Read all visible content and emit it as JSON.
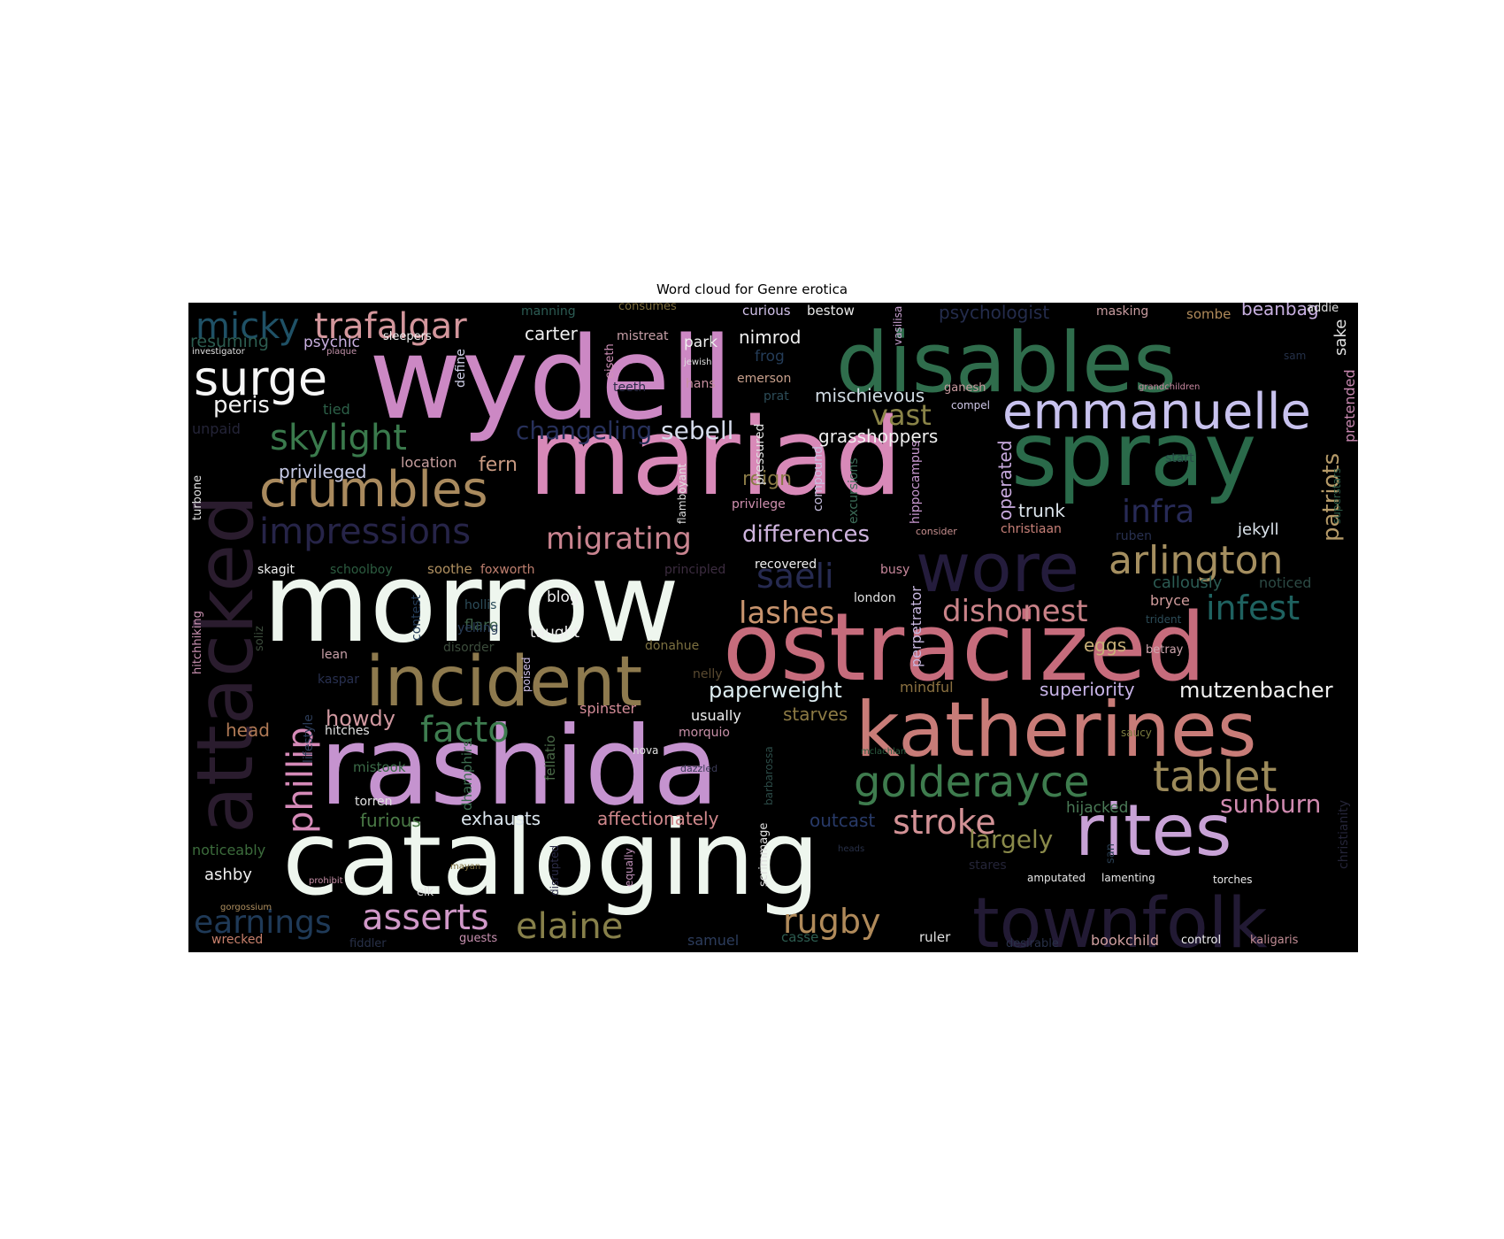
{
  "chart_data": {
    "type": "wordcloud",
    "title": "Word cloud for Genre erotica",
    "background_color": "#000000",
    "words": [
      {
        "text": "wydell",
        "color": "#cc88c4"
      },
      {
        "text": "disables",
        "color": "#2f6d4c"
      },
      {
        "text": "mariad",
        "color": "#d889b8"
      },
      {
        "text": "spray",
        "color": "#2a6a4a"
      },
      {
        "text": "morrow",
        "color": "#eef6ee"
      },
      {
        "text": "ostracized",
        "color": "#c66c7c"
      },
      {
        "text": "rashida",
        "color": "#c593cf"
      },
      {
        "text": "cataloging",
        "color": "#eef6ee"
      },
      {
        "text": "katherines",
        "color": "#c87c78"
      },
      {
        "text": "attacked",
        "color": "#2a1c2e"
      },
      {
        "text": "townfolk",
        "color": "#221a34"
      },
      {
        "text": "wore",
        "color": "#241c3c"
      },
      {
        "text": "incident",
        "color": "#8e7a4e"
      },
      {
        "text": "rites",
        "color": "#c8a2d6"
      },
      {
        "text": "emmanuelle",
        "color": "#c8c2ee"
      },
      {
        "text": "crumbles",
        "color": "#a98a5e"
      },
      {
        "text": "surge",
        "color": "#f6f6f6"
      },
      {
        "text": "trafalgar",
        "color": "#d3969c"
      },
      {
        "text": "micky",
        "color": "#1f5166"
      },
      {
        "text": "golderayce",
        "color": "#3e7c4e"
      },
      {
        "text": "tablet",
        "color": "#9c8a5a"
      },
      {
        "text": "arlington",
        "color": "#a58f60"
      },
      {
        "text": "impressions",
        "color": "#262448"
      },
      {
        "text": "skylight",
        "color": "#3a7a4c"
      },
      {
        "text": "phillip",
        "color": "#d58ab8"
      },
      {
        "text": "facto",
        "color": "#3e7d50"
      },
      {
        "text": "stroke",
        "color": "#d39296"
      },
      {
        "text": "infest",
        "color": "#1f6260"
      },
      {
        "text": "infra",
        "color": "#272a56"
      },
      {
        "text": "saeli",
        "color": "#262a50"
      },
      {
        "text": "asserts",
        "color": "#d098c8"
      },
      {
        "text": "elaine",
        "color": "#87804a"
      },
      {
        "text": "rugby",
        "color": "#b08a5a"
      },
      {
        "text": "earnings",
        "color": "#1f3a58"
      },
      {
        "text": "migrating",
        "color": "#c98490"
      },
      {
        "text": "dishonest",
        "color": "#c98288"
      },
      {
        "text": "lashes",
        "color": "#c8946e"
      },
      {
        "text": "vast",
        "color": "#8a8448"
      },
      {
        "text": "patriots",
        "color": "#b59a68"
      },
      {
        "text": "changeling",
        "color": "#27305a"
      },
      {
        "text": "sebell",
        "color": "#d6dcec"
      },
      {
        "text": "differences",
        "color": "#cfb4de"
      },
      {
        "text": "sunburn",
        "color": "#d08ab0"
      },
      {
        "text": "largely",
        "color": "#8a8a4a"
      },
      {
        "text": "peris",
        "color": "#f2f2f2"
      },
      {
        "text": "mutzenbacher",
        "color": "#f2f2f2"
      },
      {
        "text": "paperweight",
        "color": "#dcecf0"
      },
      {
        "text": "superiority",
        "color": "#c8b4e8"
      },
      {
        "text": "howdy",
        "color": "#d098a0"
      },
      {
        "text": "mischievous",
        "color": "#d2dce4"
      },
      {
        "text": "grasshoppers",
        "color": "#f0f0f0"
      },
      {
        "text": "privileged",
        "color": "#c8cce8"
      },
      {
        "text": "affectionately",
        "color": "#d0888c"
      },
      {
        "text": "exhausts",
        "color": "#dce6ee"
      },
      {
        "text": "furious",
        "color": "#4a7a46"
      },
      {
        "text": "outcast",
        "color": "#283a68"
      },
      {
        "text": "psychic",
        "color": "#c9b0e0"
      },
      {
        "text": "carter",
        "color": "#f0f0f0"
      },
      {
        "text": "nimrod",
        "color": "#f0f0f0"
      },
      {
        "text": "fern",
        "color": "#c89a82"
      },
      {
        "text": "reign",
        "color": "#8a7a46"
      },
      {
        "text": "trunk",
        "color": "#dce4ec"
      },
      {
        "text": "jekyll",
        "color": "#dce4ec"
      },
      {
        "text": "beanbag",
        "color": "#c8b0e0"
      },
      {
        "text": "psychologist",
        "color": "#242c4c"
      },
      {
        "text": "sake",
        "color": "#e0e0e0"
      },
      {
        "text": "pretended",
        "color": "#c888b0"
      },
      {
        "text": "callously",
        "color": "#2c5c54"
      },
      {
        "text": "noticed",
        "color": "#2c4a44"
      },
      {
        "text": "bryce",
        "color": "#d09c9c"
      },
      {
        "text": "eggs",
        "color": "#c8b078"
      },
      {
        "text": "hijacked",
        "color": "#4a7a56"
      },
      {
        "text": "starves",
        "color": "#8c7a44"
      },
      {
        "text": "head",
        "color": "#b07a56"
      },
      {
        "text": "spinster",
        "color": "#d48c98"
      },
      {
        "text": "usually",
        "color": "#f0f0f0"
      },
      {
        "text": "ashby",
        "color": "#f0f0f0"
      },
      {
        "text": "noticeably",
        "color": "#3c6c3c"
      },
      {
        "text": "resuming",
        "color": "#2c5c50"
      },
      {
        "text": "operated",
        "color": "#c8aade"
      },
      {
        "text": "hippocampus",
        "color": "#c898d0"
      },
      {
        "text": "perpetrator",
        "color": "#c8b8e0"
      },
      {
        "text": "mindful",
        "color": "#8a7040"
      },
      {
        "text": "location",
        "color": "#c8a0a0"
      },
      {
        "text": "blog",
        "color": "#f0f0f0"
      },
      {
        "text": "taught",
        "color": "#f0f0f0"
      },
      {
        "text": "flare",
        "color": "#3c6048"
      },
      {
        "text": "hollis",
        "color": "#2c4c5a"
      },
      {
        "text": "skagit",
        "color": "#f0f0f0"
      },
      {
        "text": "soothe",
        "color": "#b09060"
      },
      {
        "text": "foxworth",
        "color": "#c08070"
      },
      {
        "text": "schoolboy",
        "color": "#2c5c40"
      },
      {
        "text": "recovered",
        "color": "#f0f0f0"
      },
      {
        "text": "principled",
        "color": "#3c2c40"
      },
      {
        "text": "busy",
        "color": "#c8889c"
      },
      {
        "text": "london",
        "color": "#e0e0e0"
      },
      {
        "text": "christiaan",
        "color": "#c88078"
      },
      {
        "text": "ruben",
        "color": "#283050"
      },
      {
        "text": "start",
        "color": "#284c48"
      },
      {
        "text": "consider",
        "color": "#c89090"
      },
      {
        "text": "compound",
        "color": "#c8c0e0"
      },
      {
        "text": "excursions",
        "color": "#3c6c58"
      },
      {
        "text": "flamboyant",
        "color": "#e0e0e0"
      },
      {
        "text": "privilege",
        "color": "#d090b0"
      },
      {
        "text": "pressured",
        "color": "#e0e0e0"
      },
      {
        "text": "define",
        "color": "#d0d0e8"
      },
      {
        "text": "vasilisa",
        "color": "#c8a0d0"
      },
      {
        "text": "eiseth",
        "color": "#d090b8"
      },
      {
        "text": "park",
        "color": "#f0f0f0"
      },
      {
        "text": "mistreat",
        "color": "#c8a0a8"
      },
      {
        "text": "frog",
        "color": "#243c58"
      },
      {
        "text": "emerson",
        "color": "#c8a08c"
      },
      {
        "text": "prat",
        "color": "#2c4c58"
      },
      {
        "text": "hans",
        "color": "#c890a0"
      },
      {
        "text": "teeth",
        "color": "#2c2c48"
      },
      {
        "text": "jewish",
        "color": "#e0e0e0"
      },
      {
        "text": "ganesh",
        "color": "#c89ca0"
      },
      {
        "text": "compel",
        "color": "#d0c8e8"
      },
      {
        "text": "grandchildren",
        "color": "#c888a0"
      },
      {
        "text": "sam",
        "color": "#243048"
      },
      {
        "text": "masking",
        "color": "#c89ca0"
      },
      {
        "text": "sombe",
        "color": "#b08a5a"
      },
      {
        "text": "addie",
        "color": "#e0e0e0"
      },
      {
        "text": "curious",
        "color": "#d0c0e8"
      },
      {
        "text": "bestow",
        "color": "#e8e8e8"
      },
      {
        "text": "manning",
        "color": "#2c5c54"
      },
      {
        "text": "consumes",
        "color": "#7c6c3c"
      },
      {
        "text": "sleepers",
        "color": "#f0f0f0"
      },
      {
        "text": "investigator",
        "color": "#e0e0e0"
      },
      {
        "text": "plaque",
        "color": "#c090a8"
      },
      {
        "text": "tied",
        "color": "#2c6048"
      },
      {
        "text": "unpaid",
        "color": "#242438"
      },
      {
        "text": "turbone",
        "color": "#e0e0e0"
      },
      {
        "text": "hitchhiking",
        "color": "#c890b0"
      },
      {
        "text": "soliz",
        "color": "#3c4c3c"
      },
      {
        "text": "contest",
        "color": "#243c58"
      },
      {
        "text": "lean",
        "color": "#c8a0a8"
      },
      {
        "text": "disorder",
        "color": "#3c4c3c"
      },
      {
        "text": "yelling",
        "color": "#283c58"
      },
      {
        "text": "donahue",
        "color": "#7c7040"
      },
      {
        "text": "kaspar",
        "color": "#283050"
      },
      {
        "text": "lifestyle",
        "color": "#2c3c58"
      },
      {
        "text": "hitches",
        "color": "#e0e0e0"
      },
      {
        "text": "poised",
        "color": "#d0c0e8"
      },
      {
        "text": "nelly",
        "color": "#5a4a30"
      },
      {
        "text": "morquio",
        "color": "#c890a8"
      },
      {
        "text": "fellatio",
        "color": "#4a6a48"
      },
      {
        "text": "dhamphirs",
        "color": "#3c6c50"
      },
      {
        "text": "mistook",
        "color": "#3c6c48"
      },
      {
        "text": "torren",
        "color": "#e0e0e0"
      },
      {
        "text": "nova",
        "color": "#e0e0e0"
      },
      {
        "text": "dazzled",
        "color": "#3c3c58"
      },
      {
        "text": "barbarossa",
        "color": "#2c4c48"
      },
      {
        "text": "mclachlan",
        "color": "#2c5c40"
      },
      {
        "text": "heads",
        "color": "#283048"
      },
      {
        "text": "scrimmage",
        "color": "#e0e0e0"
      },
      {
        "text": "equally",
        "color": "#c090b8"
      },
      {
        "text": "disrupted",
        "color": "#2c2c48"
      },
      {
        "text": "mayan",
        "color": "#7c6c3c"
      },
      {
        "text": "elk",
        "color": "#e0e0e0"
      },
      {
        "text": "prohibit",
        "color": "#c890a8"
      },
      {
        "text": "gorgossium",
        "color": "#b09060"
      },
      {
        "text": "wrecked",
        "color": "#c8806c"
      },
      {
        "text": "fiddler",
        "color": "#283048"
      },
      {
        "text": "guests",
        "color": "#c890b0"
      },
      {
        "text": "samuel",
        "color": "#2c3c5c"
      },
      {
        "text": "casse",
        "color": "#2c5c50"
      },
      {
        "text": "ruler",
        "color": "#e0e0e0"
      },
      {
        "text": "desirable",
        "color": "#283048"
      },
      {
        "text": "bookchild",
        "color": "#d0a0a0"
      },
      {
        "text": "control",
        "color": "#f0f0f0"
      },
      {
        "text": "kaligaris",
        "color": "#c08c94"
      },
      {
        "text": "amputated",
        "color": "#e8e8e8"
      },
      {
        "text": "lamenting",
        "color": "#e8e8e8"
      },
      {
        "text": "torches",
        "color": "#e8e8e8"
      },
      {
        "text": "saucy",
        "color": "#7c7c40"
      },
      {
        "text": "betray",
        "color": "#d0a8b0"
      },
      {
        "text": "trident",
        "color": "#2c4c58"
      },
      {
        "text": "superstars",
        "color": "#2c5c48"
      },
      {
        "text": "christianity",
        "color": "#242438"
      },
      {
        "text": "san",
        "color": "#283c50"
      },
      {
        "text": "stares",
        "color": "#242438"
      }
    ]
  }
}
